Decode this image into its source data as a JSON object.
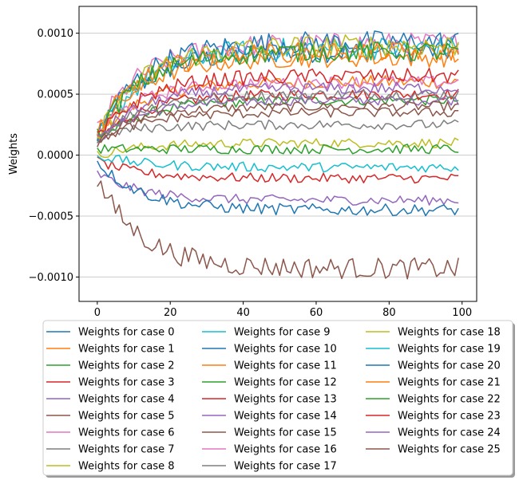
{
  "chart_data": {
    "type": "line",
    "title": "",
    "xlabel": "",
    "ylabel": "Weights",
    "xlim": [
      -5,
      104
    ],
    "ylim": [
      -0.0012,
      0.00122
    ],
    "x_ticks": [
      0,
      20,
      40,
      60,
      80,
      100
    ],
    "y_ticks": [
      -0.001,
      -0.0005,
      0.0,
      0.0005,
      0.001
    ],
    "y_tick_labels": [
      "−0.0010",
      "−0.0005",
      "0.0000",
      "0.0005",
      "0.0010"
    ],
    "grid": "horizontal",
    "legend_placement": "below, 3 columns",
    "colors": [
      "#1f77b4",
      "#ff7f0e",
      "#2ca02c",
      "#d62728",
      "#9467bd",
      "#8c564b",
      "#e377c2",
      "#7f7f7f",
      "#bcbd22",
      "#17becf"
    ],
    "n_points": 100,
    "series": [
      {
        "name": "Weights for case 0",
        "start": 0.00012,
        "end": 0.00085
      },
      {
        "name": "Weights for case 1",
        "start": 0.00015,
        "end": 0.0006
      },
      {
        "name": "Weights for case 2",
        "start": 0.0001,
        "end": 0.00045
      },
      {
        "name": "Weights for case 3",
        "start": 0.00011,
        "end": 0.0005
      },
      {
        "name": "Weights for case 4",
        "start": 0.00012,
        "end": 0.00045
      },
      {
        "name": "Weights for case 5",
        "start": 0.00012,
        "end": 0.0004
      },
      {
        "name": "Weights for case 6",
        "start": 0.0002,
        "end": 0.00092
      },
      {
        "name": "Weights for case 7",
        "start": 0.00014,
        "end": 0.0005
      },
      {
        "name": "Weights for case 8",
        "start": 0.0,
        "end": 0.0001
      },
      {
        "name": "Weights for case 9",
        "start": 0.0001,
        "end": 0.00088
      },
      {
        "name": "Weights for case 10",
        "start": 0.00014,
        "end": 0.00093
      },
      {
        "name": "Weights for case 11",
        "start": 0.00015,
        "end": 0.0008
      },
      {
        "name": "Weights for case 12",
        "start": 5e-05,
        "end": 5e-05
      },
      {
        "name": "Weights for case 13",
        "start": -5e-05,
        "end": -0.00019
      },
      {
        "name": "Weights for case 14",
        "start": -0.00015,
        "end": -0.00037
      },
      {
        "name": "Weights for case 15",
        "start": -0.0002,
        "end": -0.00093
      },
      {
        "name": "Weights for case 16",
        "start": 0.00018,
        "end": 0.0006
      },
      {
        "name": "Weights for case 17",
        "start": 0.00016,
        "end": 0.00025
      },
      {
        "name": "Weights for case 18",
        "start": 0.00012,
        "end": 0.0009
      },
      {
        "name": "Weights for case 19",
        "start": 0.0,
        "end": -0.0001
      },
      {
        "name": "Weights for case 20",
        "start": -5e-05,
        "end": -0.00045
      },
      {
        "name": "Weights for case 21",
        "start": 0.00018,
        "end": 0.00085
      },
      {
        "name": "Weights for case 22",
        "start": 0.00015,
        "end": 0.00085
      },
      {
        "name": "Weights for case 23",
        "start": 0.00013,
        "end": 0.00065
      },
      {
        "name": "Weights for case 24",
        "start": 0.00013,
        "end": 0.00055
      },
      {
        "name": "Weights for case 25",
        "start": 0.0001,
        "end": 0.00035
      }
    ]
  }
}
